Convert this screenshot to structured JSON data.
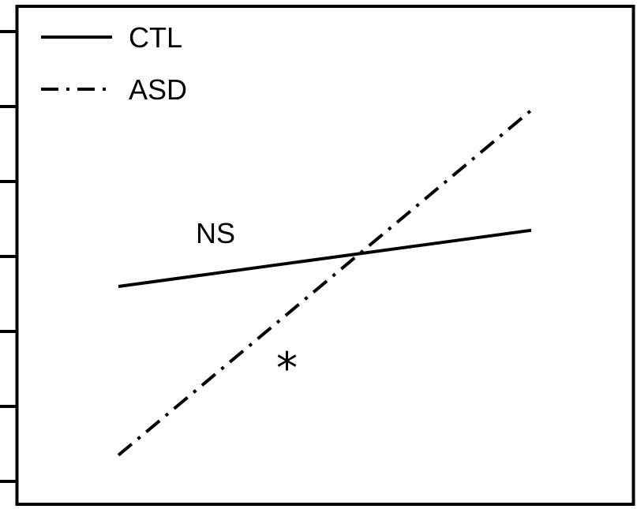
{
  "chart_data": {
    "type": "line",
    "title": "",
    "xlabel": "",
    "ylabel": "",
    "x": [
      0,
      1
    ],
    "xlim": [
      -0.2,
      1.2
    ],
    "ylim": [
      0,
      6
    ],
    "yticks": [
      0,
      1,
      2,
      3,
      4,
      5,
      6
    ],
    "grid": false,
    "legend": {
      "position": "top-left"
    },
    "series": [
      {
        "name": "CTL",
        "values": [
          2.6,
          3.35
        ],
        "style": "solid",
        "color": "#000000"
      },
      {
        "name": "ASD",
        "values": [
          0.35,
          4.95
        ],
        "style": "dashdot",
        "color": "#000000"
      }
    ],
    "annotations": [
      {
        "text": "NS",
        "series": "CTL",
        "x": 0.25,
        "y": 3.35
      },
      {
        "text": "*",
        "series": "ASD",
        "x": 0.42,
        "y": 1.5
      }
    ]
  }
}
